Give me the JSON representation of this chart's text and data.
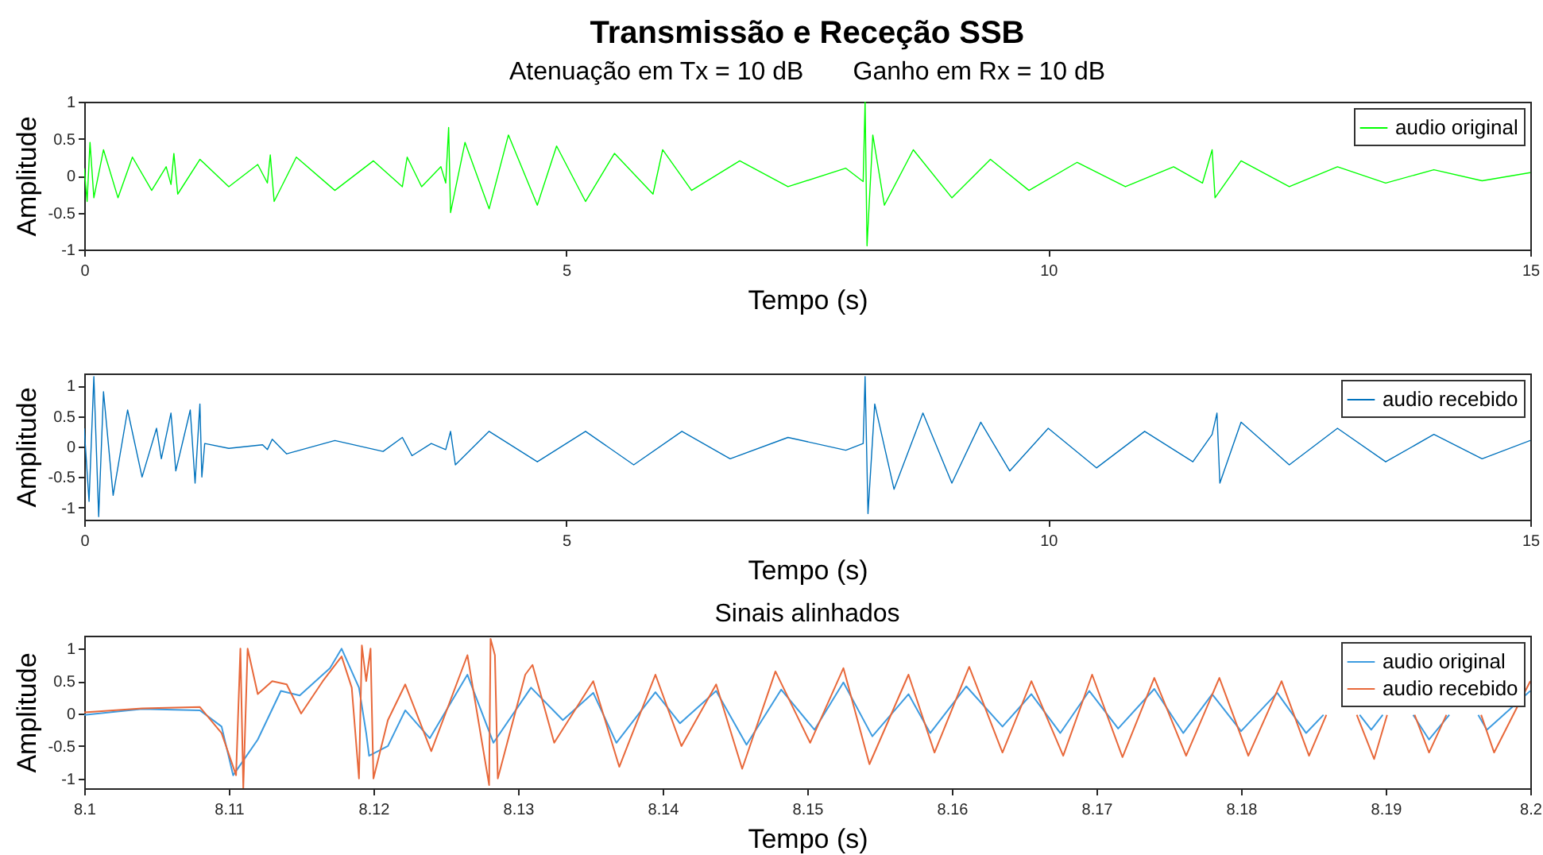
{
  "chart_data": [
    {
      "type": "line",
      "title": "Transmissão e Receção SSB",
      "subtitle": "Atenuação em Tx = 10 dB       Ganho em Rx = 10 dB",
      "xlabel": "Tempo (s)",
      "ylabel": "Amplitude",
      "xlim": [
        0,
        15
      ],
      "xticks": [
        0,
        5,
        10,
        15
      ],
      "ylim": [
        -1,
        1
      ],
      "yticks": [
        -1,
        -0.5,
        0,
        0.5,
        1
      ],
      "legend": "top right",
      "series": [
        {
          "name": "audio original",
          "color": "#00ff00",
          "x": [
            0,
            0.03,
            0.06,
            0.1,
            0.2,
            0.35,
            0.5,
            0.7,
            0.85,
            0.9,
            0.93,
            0.97,
            1.2,
            1.5,
            1.8,
            1.9,
            1.93,
            1.97,
            2.2,
            2.6,
            3.0,
            3.3,
            3.35,
            3.5,
            3.7,
            3.75,
            3.78,
            3.8,
            3.95,
            4.2,
            4.4,
            4.7,
            4.9,
            5.2,
            5.5,
            5.9,
            6.0,
            6.3,
            6.8,
            7.3,
            7.9,
            8.08,
            8.1,
            8.12,
            8.18,
            8.3,
            8.6,
            9.0,
            9.4,
            9.8,
            10.3,
            10.8,
            11.3,
            11.6,
            11.7,
            11.73,
            12.0,
            12.5,
            13.0,
            13.5,
            14.0,
            14.5,
            15.0
          ],
          "values": [
            0.1,
            -0.35,
            0.45,
            -0.3,
            0.35,
            -0.3,
            0.25,
            -0.2,
            0.12,
            -0.12,
            0.3,
            -0.25,
            0.22,
            -0.15,
            0.15,
            -0.1,
            0.28,
            -0.35,
            0.25,
            -0.2,
            0.2,
            -0.15,
            0.25,
            -0.15,
            0.12,
            -0.1,
            0.65,
            -0.5,
            0.45,
            -0.45,
            0.55,
            -0.4,
            0.4,
            -0.35,
            0.3,
            -0.25,
            0.35,
            -0.2,
            0.2,
            -0.15,
            0.1,
            -0.08,
            1.0,
            -0.95,
            0.55,
            -0.4,
            0.35,
            -0.3,
            0.22,
            -0.2,
            0.18,
            -0.15,
            0.12,
            -0.1,
            0.35,
            -0.3,
            0.2,
            -0.15,
            0.12,
            -0.1,
            0.08,
            -0.07,
            0.04
          ]
        }
      ]
    },
    {
      "type": "line",
      "xlabel": "Tempo (s)",
      "ylabel": "Amplitude",
      "xlim": [
        0,
        15
      ],
      "xticks": [
        0,
        5,
        10,
        15
      ],
      "ylim": [
        -1.2,
        1.2
      ],
      "yticks": [
        -1,
        -0.5,
        0,
        0.5,
        1
      ],
      "legend": "top right",
      "series": [
        {
          "name": "audio recebido",
          "color": "#0072bd",
          "x": [
            0,
            0.05,
            0.1,
            0.15,
            0.2,
            0.3,
            0.45,
            0.6,
            0.75,
            0.8,
            0.9,
            0.95,
            1.1,
            1.15,
            1.2,
            1.22,
            1.25,
            1.5,
            1.85,
            1.9,
            1.95,
            2.1,
            2.6,
            3.1,
            3.3,
            3.4,
            3.6,
            3.75,
            3.8,
            3.85,
            4.2,
            4.7,
            5.2,
            5.7,
            6.2,
            6.7,
            7.3,
            7.9,
            8.08,
            8.1,
            8.13,
            8.2,
            8.4,
            8.7,
            9.0,
            9.3,
            9.6,
            10.0,
            10.5,
            11.0,
            11.5,
            11.7,
            11.75,
            11.78,
            12.0,
            12.5,
            13.0,
            13.5,
            14.0,
            14.5,
            15.0
          ],
          "values": [
            0.3,
            -0.9,
            1.15,
            -1.15,
            0.9,
            -0.8,
            0.6,
            -0.5,
            0.3,
            -0.2,
            0.55,
            -0.4,
            0.6,
            -0.6,
            0.7,
            -0.5,
            0.05,
            -0.03,
            0.03,
            -0.05,
            0.12,
            -0.12,
            0.1,
            -0.08,
            0.15,
            -0.15,
            0.05,
            -0.05,
            0.25,
            -0.3,
            0.25,
            -0.25,
            0.25,
            -0.3,
            0.25,
            -0.2,
            0.15,
            -0.06,
            0.05,
            1.15,
            -1.1,
            0.7,
            -0.7,
            0.55,
            -0.6,
            0.4,
            -0.4,
            0.3,
            -0.35,
            0.25,
            -0.25,
            0.2,
            0.55,
            -0.6,
            0.4,
            -0.3,
            0.3,
            -0.25,
            0.2,
            -0.2,
            0.1
          ]
        }
      ]
    },
    {
      "type": "line",
      "title": "Sinais alinhados",
      "xlabel": "Tempo (s)",
      "ylabel": "Amplitude",
      "xlim": [
        8.1,
        8.2
      ],
      "xticks": [
        8.1,
        8.11,
        8.12,
        8.13,
        8.14,
        8.15,
        8.16,
        8.17,
        8.18,
        8.19,
        8.2
      ],
      "ylim": [
        -1.15,
        1.2
      ],
      "yticks": [
        -1,
        -0.5,
        0,
        0.5,
        1
      ],
      "legend": "top right",
      "series": [
        {
          "name": "audio original",
          "color": "#3d9be0",
          "x": [
            8.1,
            8.104,
            8.108,
            8.1095,
            8.1103,
            8.112,
            8.1136,
            8.1149,
            8.117,
            8.1178,
            8.119,
            8.1195,
            8.1197,
            8.121,
            8.1222,
            8.1239,
            8.1265,
            8.1283,
            8.1309,
            8.1331,
            8.1352,
            8.1368,
            8.1395,
            8.1412,
            8.1437,
            8.1458,
            8.1482,
            8.1505,
            8.1525,
            8.1545,
            8.157,
            8.1585,
            8.161,
            8.1635,
            8.1655,
            8.1675,
            8.1695,
            8.1715,
            8.174,
            8.176,
            8.178,
            8.18,
            8.1825,
            8.1845,
            8.1857,
            8.187,
            8.1882,
            8.189,
            8.1898,
            8.191,
            8.1919,
            8.193,
            8.1944,
            8.1955,
            8.1964,
            8.197,
            8.2
          ],
          "values": [
            -0.02,
            0.07,
            0.05,
            -0.2,
            -0.95,
            -0.4,
            0.35,
            0.28,
            0.7,
            1.0,
            0.4,
            -0.3,
            -0.65,
            -0.5,
            0.05,
            -0.38,
            0.6,
            -0.45,
            0.4,
            -0.1,
            0.32,
            -0.45,
            0.33,
            -0.15,
            0.35,
            -0.48,
            0.37,
            -0.25,
            0.48,
            -0.35,
            0.3,
            -0.3,
            0.42,
            -0.2,
            0.3,
            -0.3,
            0.35,
            -0.23,
            0.38,
            -0.3,
            0.3,
            -0.27,
            0.32,
            -0.3,
            -0.02,
            null,
            -0.02,
            -0.25,
            -0.02,
            null,
            -0.02,
            -0.4,
            -0.02,
            null,
            -0.02,
            -0.25,
            0.35
          ]
        },
        {
          "name": "audio recebido",
          "color": "#e8683a",
          "x": [
            8.1,
            8.104,
            8.108,
            8.1095,
            8.1105,
            8.1108,
            8.111,
            8.1113,
            8.112,
            8.113,
            8.114,
            8.115,
            8.1165,
            8.1178,
            8.1185,
            8.119,
            8.1192,
            8.1195,
            8.1198,
            8.12,
            8.121,
            8.1222,
            8.124,
            8.1265,
            8.128,
            8.1281,
            8.1284,
            8.1286,
            8.1305,
            8.131,
            8.1325,
            8.1352,
            8.137,
            8.1395,
            8.1413,
            8.1437,
            8.1455,
            8.1478,
            8.1502,
            8.1525,
            8.1543,
            8.157,
            8.1588,
            8.1612,
            8.1635,
            8.1655,
            8.1677,
            8.1697,
            8.1718,
            8.174,
            8.1762,
            8.1785,
            8.1805,
            8.1828,
            8.1847,
            8.1859,
            8.187,
            8.188,
            8.1892,
            8.1901,
            8.191,
            8.192,
            8.193,
            8.1942,
            8.1955,
            8.1966,
            8.1975,
            8.2
          ],
          "values": [
            0.02,
            0.08,
            0.1,
            -0.3,
            -0.95,
            1.0,
            -1.15,
            1.0,
            0.3,
            0.5,
            0.45,
            0.0,
            0.5,
            0.88,
            0.4,
            -1.0,
            1.05,
            0.5,
            1.0,
            -1.0,
            -0.1,
            0.45,
            -0.58,
            0.9,
            -1.1,
            1.15,
            0.9,
            -1.0,
            0.6,
            0.75,
            -0.45,
            0.5,
            -0.82,
            0.6,
            -0.5,
            0.45,
            -0.85,
            0.65,
            -0.45,
            0.7,
            -0.78,
            0.6,
            -0.6,
            0.72,
            -0.6,
            0.5,
            -0.65,
            0.6,
            -0.67,
            0.55,
            -0.65,
            0.55,
            -0.65,
            0.5,
            -0.65,
            -0.02,
            null,
            -0.02,
            -0.7,
            -0.02,
            null,
            -0.02,
            -0.6,
            -0.02,
            null,
            -0.02,
            -0.6,
            0.5
          ]
        }
      ]
    }
  ]
}
